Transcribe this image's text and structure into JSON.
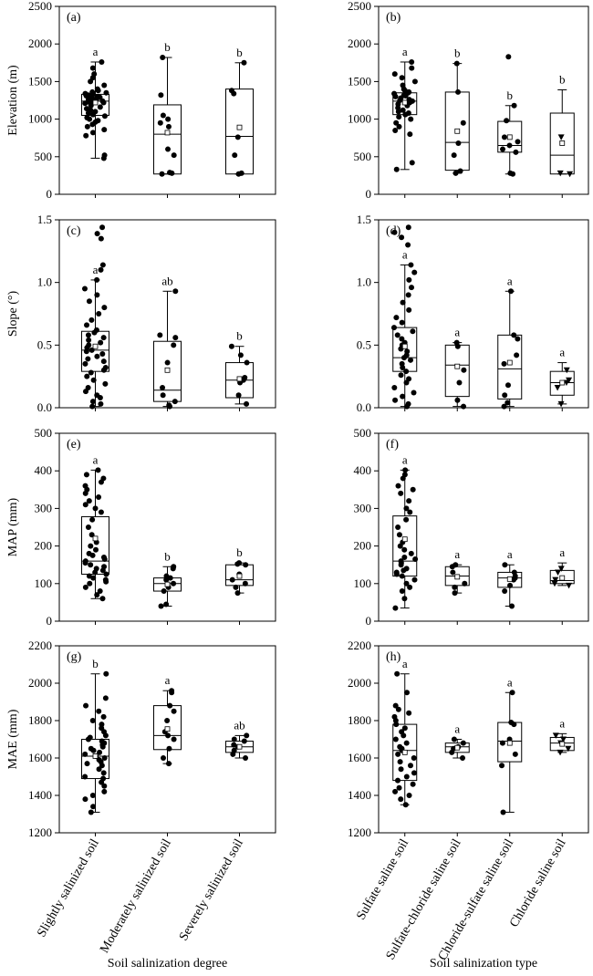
{
  "chart_data": {
    "type": "box",
    "x_titles": [
      "Soil salinization degree",
      "Soil salinization type"
    ],
    "categories_left": [
      "Slightly salinized soil",
      "Moderately salinized soil",
      "Severely salinized soil"
    ],
    "categories_right": [
      "Sulfate saline soil",
      "Sulfate-chloride saline soil",
      "Chloride-sulfate saline soil",
      "Chloride saline soil"
    ],
    "rows": [
      {
        "ylabel": "Elevation (m)",
        "ylim": [
          0,
          2500
        ],
        "ticks": [
          "0",
          "500",
          "1000",
          "1500",
          "2000",
          "2500"
        ]
      },
      {
        "ylabel": "Slope (°)",
        "ylim": [
          0,
          1.5
        ],
        "ticks": [
          "0.0",
          "0.5",
          "1.0",
          "1.5"
        ]
      },
      {
        "ylabel": "MAP (mm)",
        "ylim": [
          0,
          500
        ],
        "ticks": [
          "0",
          "100",
          "200",
          "300",
          "400",
          "500"
        ]
      },
      {
        "ylabel": "MAE (mm)",
        "ylim": [
          1200,
          2200
        ],
        "ticks": [
          "1200",
          "1400",
          "1600",
          "1800",
          "2000",
          "2200"
        ]
      }
    ],
    "panels": [
      {
        "label": "(a)",
        "row": 0,
        "col": 0,
        "groups": [
          {
            "q1": 1050,
            "median": 1240,
            "q3": 1330,
            "lo": 480,
            "hi": 1760,
            "mean": 1220,
            "sig": "a",
            "points": [
              480,
              520,
              780,
              820,
              860,
              900,
              930,
              960,
              980,
              1000,
              1020,
              1040,
              1060,
              1080,
              1100,
              1120,
              1140,
              1160,
              1180,
              1200,
              1210,
              1220,
              1230,
              1240,
              1250,
              1260,
              1270,
              1280,
              1290,
              1300,
              1310,
              1320,
              1330,
              1340,
              1350,
              1360,
              1380,
              1400,
              1450,
              1500,
              1550,
              1600,
              1680,
              1760
            ]
          },
          {
            "q1": 270,
            "median": 800,
            "q3": 1190,
            "lo": 270,
            "hi": 1820,
            "mean": 820,
            "sig": "b",
            "points": [
              270,
              280,
              290,
              520,
              600,
              900,
              950,
              1000,
              1050,
              1320,
              1820
            ]
          },
          {
            "q1": 270,
            "median": 770,
            "q3": 1400,
            "lo": 270,
            "hi": 1750,
            "mean": 890,
            "sig": "b",
            "points": [
              270,
              280,
              520,
              760,
              1340,
              1380,
              1750
            ]
          }
        ]
      },
      {
        "label": "(b)",
        "row": 0,
        "col": 1,
        "groups": [
          {
            "q1": 1060,
            "median": 1240,
            "q3": 1350,
            "lo": 330,
            "hi": 1760,
            "mean": 1220,
            "sig": "a",
            "points": [
              330,
              420,
              800,
              850,
              900,
              950,
              1000,
              1030,
              1060,
              1080,
              1100,
              1120,
              1150,
              1180,
              1200,
              1220,
              1240,
              1250,
              1260,
              1280,
              1300,
              1310,
              1320,
              1340,
              1350,
              1360,
              1380,
              1400,
              1450,
              1500,
              1550,
              1600,
              1680,
              1760
            ]
          },
          {
            "q1": 320,
            "median": 690,
            "q3": 1360,
            "lo": 280,
            "hi": 1740,
            "mean": 840,
            "sig": "b",
            "points": [
              280,
              310,
              520,
              680,
              950,
              1360,
              1740
            ]
          },
          {
            "q1": 560,
            "median": 650,
            "q3": 970,
            "lo": 270,
            "hi": 1180,
            "mean": 760,
            "sig": "b",
            "points": [
              270,
              280,
              560,
              600,
              650,
              700,
              760,
              980,
              1180,
              1830
            ]
          },
          {
            "q1": 270,
            "median": 520,
            "q3": 1080,
            "lo": 270,
            "hi": 1390,
            "mean": 680,
            "sig": "b",
            "points": [
              270,
              280,
              760
            ]
          }
        ]
      },
      {
        "label": "(c)",
        "row": 1,
        "col": 0,
        "groups": [
          {
            "q1": 0.29,
            "median": 0.46,
            "q3": 0.61,
            "lo": 0.01,
            "hi": 1.02,
            "mean": 0.49,
            "sig": "a",
            "points": [
              0.01,
              0.03,
              0.05,
              0.08,
              0.1,
              0.13,
              0.16,
              0.19,
              0.22,
              0.25,
              0.28,
              0.3,
              0.32,
              0.35,
              0.37,
              0.39,
              0.41,
              0.43,
              0.45,
              0.46,
              0.48,
              0.5,
              0.52,
              0.54,
              0.56,
              0.58,
              0.6,
              0.62,
              0.66,
              0.7,
              0.75,
              0.8,
              0.85,
              0.9,
              0.95,
              1.02,
              1.1,
              1.14,
              1.35,
              1.39,
              1.44
            ]
          },
          {
            "q1": 0.05,
            "median": 0.14,
            "q3": 0.53,
            "lo": 0.01,
            "hi": 0.93,
            "mean": 0.3,
            "sig": "ab",
            "points": [
              0.01,
              0.02,
              0.05,
              0.1,
              0.16,
              0.36,
              0.5,
              0.56,
              0.58,
              0.93
            ]
          },
          {
            "q1": 0.08,
            "median": 0.22,
            "q3": 0.36,
            "lo": 0.03,
            "hi": 0.49,
            "mean": 0.23,
            "sig": "b",
            "points": [
              0.03,
              0.1,
              0.2,
              0.22,
              0.24,
              0.36,
              0.42,
              0.49
            ]
          }
        ]
      },
      {
        "label": "(d)",
        "row": 1,
        "col": 1,
        "groups": [
          {
            "q1": 0.29,
            "median": 0.4,
            "q3": 0.64,
            "lo": 0.01,
            "hi": 1.14,
            "mean": 0.49,
            "sig": "a",
            "points": [
              0.01,
              0.03,
              0.06,
              0.09,
              0.12,
              0.16,
              0.2,
              0.23,
              0.26,
              0.29,
              0.32,
              0.35,
              0.38,
              0.4,
              0.42,
              0.45,
              0.47,
              0.5,
              0.52,
              0.55,
              0.58,
              0.61,
              0.64,
              0.68,
              0.72,
              0.78,
              0.84,
              0.9,
              0.96,
              1.02,
              1.08,
              1.14,
              1.3,
              1.36,
              1.4,
              1.44
            ]
          },
          {
            "q1": 0.09,
            "median": 0.34,
            "q3": 0.5,
            "lo": 0.01,
            "hi": 0.52,
            "mean": 0.33,
            "sig": "a",
            "points": [
              0.01,
              0.06,
              0.2,
              0.3,
              0.49,
              0.52
            ]
          },
          {
            "q1": 0.07,
            "median": 0.31,
            "q3": 0.58,
            "lo": 0.01,
            "hi": 0.93,
            "mean": 0.36,
            "sig": "a",
            "points": [
              0.01,
              0.04,
              0.1,
              0.18,
              0.35,
              0.42,
              0.55,
              0.58,
              0.93
            ]
          },
          {
            "q1": 0.1,
            "median": 0.2,
            "q3": 0.29,
            "lo": 0.03,
            "hi": 0.36,
            "mean": 0.2,
            "sig": "a",
            "points": [
              0.03,
              0.16,
              0.2,
              0.22,
              0.3
            ]
          }
        ]
      },
      {
        "label": "(e)",
        "row": 2,
        "col": 0,
        "groups": [
          {
            "q1": 125,
            "median": 160,
            "q3": 278,
            "lo": 60,
            "hi": 402,
            "mean": 220,
            "sig": "a",
            "points": [
              60,
              70,
              80,
              90,
              100,
              105,
              110,
              115,
              120,
              125,
              130,
              135,
              140,
              145,
              150,
              155,
              160,
              165,
              170,
              175,
              180,
              190,
              200,
              210,
              230,
              250,
              270,
              290,
              300,
              310,
              320,
              330,
              340,
              350,
              360,
              370,
              380,
              390,
              402
            ]
          },
          {
            "q1": 80,
            "median": 100,
            "q3": 115,
            "lo": 40,
            "hi": 145,
            "mean": 98,
            "sig": "b",
            "points": [
              40,
              45,
              80,
              90,
              100,
              110,
              115,
              120,
              140,
              145
            ]
          },
          {
            "q1": 95,
            "median": 110,
            "q3": 150,
            "lo": 75,
            "hi": 155,
            "mean": 120,
            "sig": "b",
            "points": [
              75,
              90,
              100,
              110,
              125,
              150,
              152,
              155
            ]
          }
        ]
      },
      {
        "label": "(f)",
        "row": 2,
        "col": 1,
        "groups": [
          {
            "q1": 120,
            "median": 160,
            "q3": 280,
            "lo": 35,
            "hi": 402,
            "mean": 218,
            "sig": "a",
            "points": [
              35,
              60,
              80,
              90,
              100,
              110,
              120,
              125,
              130,
              135,
              140,
              150,
              155,
              160,
              165,
              170,
              180,
              190,
              200,
              210,
              230,
              250,
              270,
              290,
              300,
              320,
              340,
              350,
              360,
              380,
              390,
              402
            ]
          },
          {
            "q1": 95,
            "median": 120,
            "q3": 145,
            "lo": 75,
            "hi": 150,
            "mean": 118,
            "sig": "a",
            "points": [
              75,
              90,
              100,
              130,
              145,
              150
            ]
          },
          {
            "q1": 90,
            "median": 115,
            "q3": 130,
            "lo": 40,
            "hi": 150,
            "mean": 112,
            "sig": "a",
            "points": [
              40,
              80,
              95,
              110,
              115,
              120,
              130,
              150
            ]
          },
          {
            "q1": 100,
            "median": 108,
            "q3": 135,
            "lo": 95,
            "hi": 155,
            "mean": 115,
            "sig": "a",
            "points": [
              95,
              100,
              110,
              130,
              140
            ]
          }
        ]
      },
      {
        "label": "(g)",
        "row": 3,
        "col": 0,
        "groups": [
          {
            "q1": 1490,
            "median": 1610,
            "q3": 1700,
            "lo": 1310,
            "hi": 2050,
            "mean": 1610,
            "sig": "b",
            "points": [
              1310,
              1340,
              1380,
              1400,
              1420,
              1450,
              1470,
              1490,
              1500,
              1520,
              1540,
              1560,
              1570,
              1580,
              1590,
              1600,
              1610,
              1620,
              1630,
              1640,
              1650,
              1660,
              1670,
              1680,
              1690,
              1700,
              1710,
              1720,
              1740,
              1760,
              1780,
              1800,
              1820,
              1850,
              1880,
              1920,
              2050
            ]
          },
          {
            "q1": 1645,
            "median": 1720,
            "q3": 1880,
            "lo": 1570,
            "hi": 1960,
            "mean": 1755,
            "sig": "a",
            "points": [
              1570,
              1600,
              1650,
              1700,
              1720,
              1740,
              1800,
              1850,
              1880,
              1950,
              1960
            ]
          },
          {
            "q1": 1630,
            "median": 1660,
            "q3": 1690,
            "lo": 1600,
            "hi": 1720,
            "mean": 1660,
            "sig": "ab",
            "points": [
              1600,
              1620,
              1640,
              1660,
              1670,
              1690,
              1700,
              1720
            ]
          }
        ]
      },
      {
        "label": "(h)",
        "row": 3,
        "col": 1,
        "groups": [
          {
            "q1": 1480,
            "median": 1640,
            "q3": 1780,
            "lo": 1350,
            "hi": 2050,
            "mean": 1630,
            "sig": "a",
            "points": [
              1350,
              1380,
              1400,
              1420,
              1440,
              1460,
              1480,
              1500,
              1520,
              1540,
              1560,
              1580,
              1600,
              1620,
              1640,
              1650,
              1660,
              1680,
              1700,
              1720,
              1740,
              1760,
              1780,
              1800,
              1820,
              1840,
              1860,
              1880,
              1950,
              2050
            ]
          },
          {
            "q1": 1630,
            "median": 1660,
            "q3": 1680,
            "lo": 1600,
            "hi": 1700,
            "mean": 1655,
            "sig": "a",
            "points": [
              1600,
              1630,
              1650,
              1660,
              1680,
              1700
            ]
          },
          {
            "q1": 1580,
            "median": 1690,
            "q3": 1790,
            "lo": 1310,
            "hi": 1950,
            "mean": 1680,
            "sig": "a",
            "points": [
              1310,
              1560,
              1620,
              1680,
              1700,
              1780,
              1790,
              1950
            ]
          },
          {
            "q1": 1640,
            "median": 1680,
            "q3": 1710,
            "lo": 1630,
            "hi": 1730,
            "mean": 1675,
            "sig": "a",
            "points": [
              1630,
              1650,
              1680,
              1700,
              1720
            ]
          }
        ]
      }
    ]
  }
}
